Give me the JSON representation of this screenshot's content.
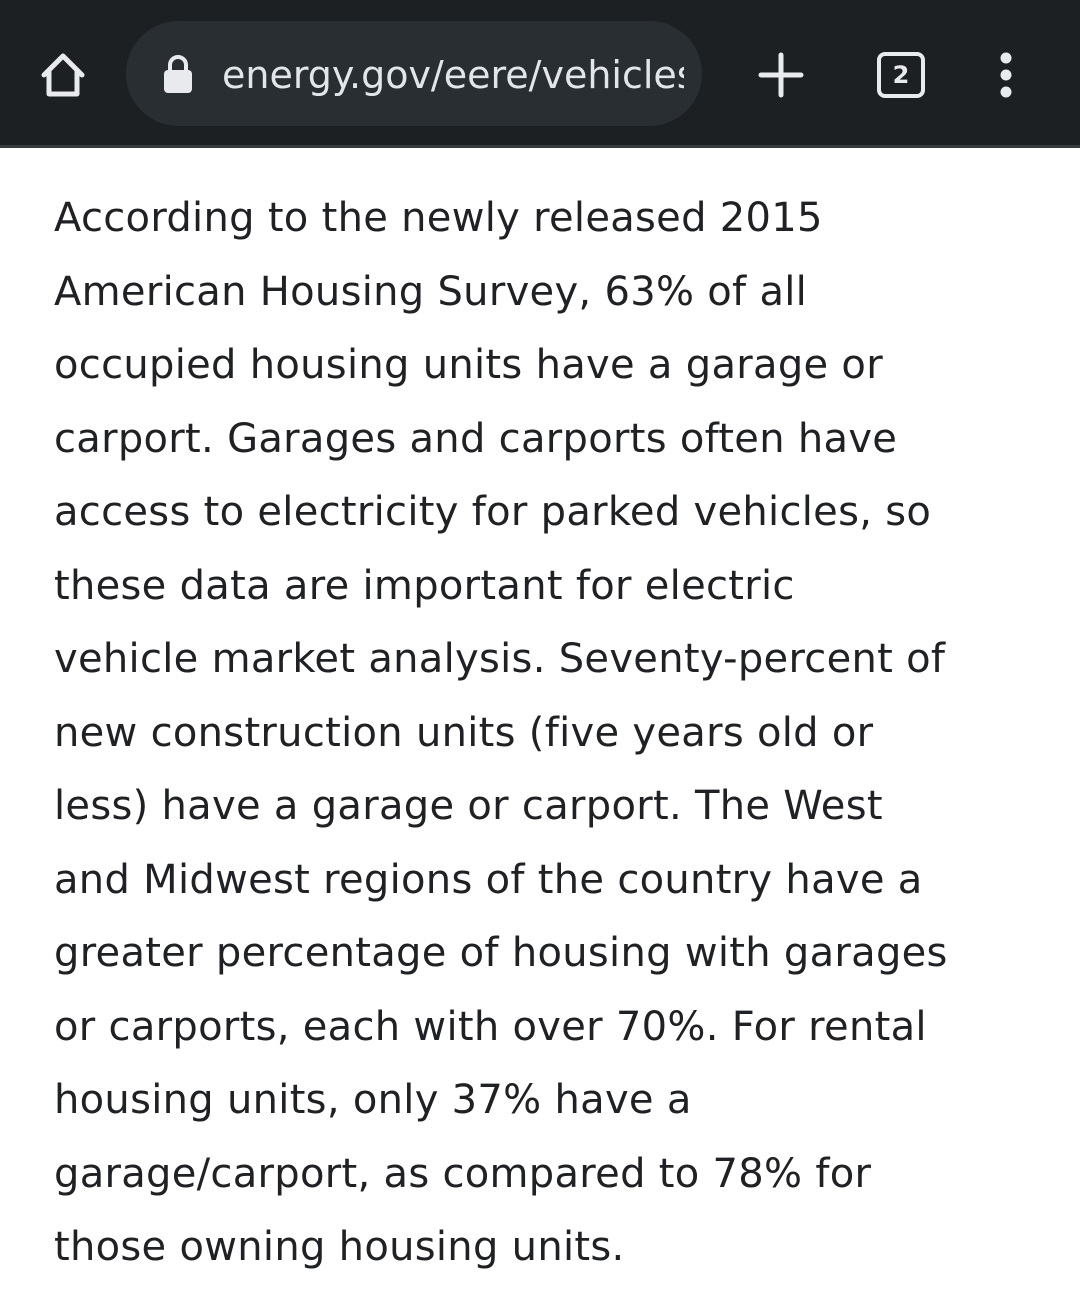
{
  "browser": {
    "url": "energy.gov/eere/vehicles",
    "tab_count": "2",
    "icons": {
      "home": "home-icon",
      "lock": "lock-icon",
      "new_tab": "plus-icon",
      "tabs": "tab-switcher-icon",
      "menu": "more-vert-icon"
    }
  },
  "article": {
    "lines": [
      "According to the newly released 2015",
      "American Housing Survey, 63% of all",
      "occupied housing units have a garage or",
      "carport. Garages and carports often have",
      "access to electricity for parked vehicles, so",
      "these data are important for electric",
      "vehicle market analysis. Seventy-percent of",
      "new construction units (five years old or",
      "less) have a garage or carport. The West",
      "and Midwest regions of the country have a",
      "greater percentage of housing with garages",
      "or carports, each with over 70%. For rental",
      "housing units, only 37% have a",
      "garage/carport, as compared to 78% for",
      "those owning housing units."
    ]
  },
  "colors": {
    "toolbar_bg": "#1d2023",
    "omnibox_bg": "#282e32",
    "icon": "#e8eaed",
    "text": "#202124",
    "page_bg": "#ffffff"
  }
}
